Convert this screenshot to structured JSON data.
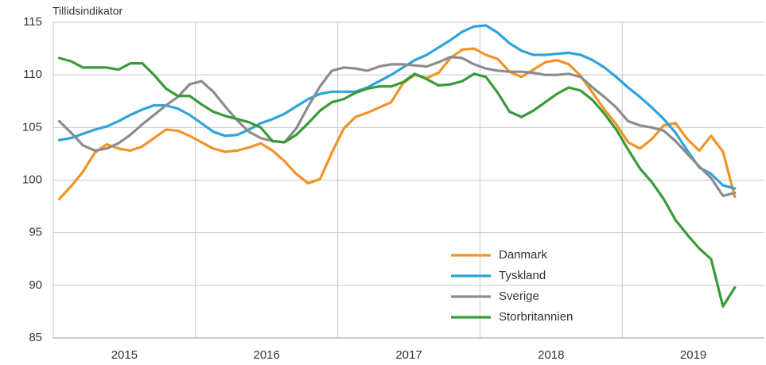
{
  "chart_data": {
    "type": "line",
    "y_label": "Tillidsindikator",
    "categories": [
      null,
      null,
      null,
      null,
      null,
      "2015",
      null,
      null,
      null,
      null,
      null,
      null,
      null,
      null,
      null,
      null,
      null,
      "2016",
      null,
      null,
      null,
      null,
      null,
      null,
      null,
      null,
      null,
      null,
      null,
      "2017",
      null,
      null,
      null,
      null,
      null,
      null,
      null,
      null,
      null,
      null,
      null,
      "2018",
      null,
      null,
      null,
      null,
      null,
      null,
      null,
      null,
      null,
      null,
      null,
      "2019",
      null,
      null,
      null,
      null
    ],
    "ylim": [
      85,
      115
    ],
    "yticks": [
      85,
      90,
      95,
      100,
      105,
      110,
      115
    ],
    "grid": true,
    "legend": "bottom",
    "series": [
      {
        "name": "Danmark",
        "color": "#f39325",
        "values": [
          98.2,
          99.4,
          100.8,
          102.6,
          103.4,
          103.0,
          102.8,
          103.2,
          104.0,
          104.8,
          104.7,
          104.2,
          103.6,
          103.0,
          102.7,
          102.8,
          103.1,
          103.5,
          102.8,
          101.8,
          100.6,
          99.7,
          100.1,
          102.6,
          104.9,
          106.0,
          106.4,
          106.9,
          107.4,
          109.2,
          110.0,
          109.7,
          110.2,
          111.6,
          112.4,
          112.5,
          111.9,
          111.5,
          110.3,
          109.8,
          110.5,
          111.2,
          111.4,
          111.0,
          109.9,
          108.3,
          106.7,
          105.3,
          103.6,
          103.0,
          103.9,
          105.2,
          105.4,
          103.9,
          102.8,
          104.2,
          102.7,
          98.4
        ]
      },
      {
        "name": "Tyskland",
        "color": "#2fa3dc",
        "values": [
          103.8,
          104.0,
          104.4,
          104.8,
          105.1,
          105.6,
          106.2,
          106.7,
          107.1,
          107.1,
          106.8,
          106.2,
          105.4,
          104.6,
          104.2,
          104.3,
          104.8,
          105.4,
          105.8,
          106.3,
          107.0,
          107.7,
          108.2,
          108.4,
          108.4,
          108.4,
          108.8,
          109.4,
          110.0,
          110.7,
          111.4,
          111.9,
          112.6,
          113.3,
          114.1,
          114.6,
          114.7,
          114.0,
          113.0,
          112.3,
          111.9,
          111.9,
          112.0,
          112.1,
          111.9,
          111.4,
          110.7,
          109.8,
          108.8,
          107.9,
          106.9,
          105.8,
          104.5,
          102.8,
          101.2,
          100.6,
          99.5,
          99.2
        ]
      },
      {
        "name": "Sverige",
        "color": "#8c8c8c",
        "values": [
          105.6,
          104.5,
          103.3,
          102.8,
          103.0,
          103.5,
          104.3,
          105.3,
          106.2,
          107.1,
          107.9,
          109.1,
          109.4,
          108.4,
          107.0,
          105.7,
          104.6,
          104.0,
          103.7,
          103.6,
          104.9,
          107.0,
          108.9,
          110.4,
          110.7,
          110.6,
          110.4,
          110.8,
          111.0,
          111.0,
          110.9,
          110.8,
          111.2,
          111.7,
          111.6,
          111.0,
          110.6,
          110.4,
          110.3,
          110.3,
          110.2,
          110.0,
          110.0,
          110.1,
          109.8,
          108.8,
          107.9,
          106.9,
          105.6,
          105.2,
          105.0,
          104.7,
          103.7,
          102.5,
          101.3,
          100.2,
          98.5,
          98.8
        ]
      },
      {
        "name": "Storbritannien",
        "color": "#3a9a3a",
        "values": [
          111.6,
          111.3,
          110.7,
          110.7,
          110.7,
          110.5,
          111.1,
          111.1,
          110.0,
          108.7,
          108.0,
          108.0,
          107.2,
          106.5,
          106.1,
          105.8,
          105.5,
          105.0,
          103.7,
          103.6,
          104.3,
          105.4,
          106.6,
          107.4,
          107.7,
          108.3,
          108.7,
          108.9,
          108.9,
          109.3,
          110.1,
          109.6,
          109.0,
          109.1,
          109.4,
          110.1,
          109.8,
          108.3,
          106.5,
          106.0,
          106.6,
          107.4,
          108.2,
          108.8,
          108.5,
          107.6,
          106.3,
          104.8,
          102.9,
          101.1,
          99.8,
          98.2,
          96.2,
          94.8,
          93.5,
          92.5,
          88.0,
          89.8
        ]
      }
    ]
  }
}
